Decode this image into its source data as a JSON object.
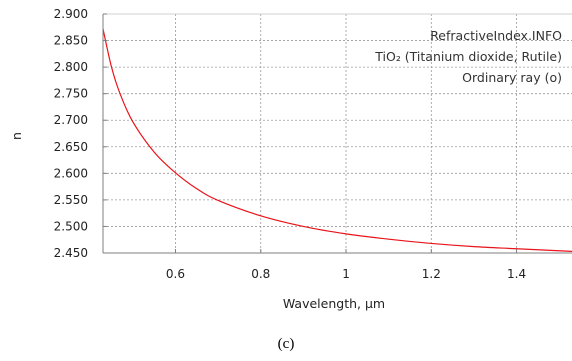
{
  "chart_data": {
    "type": "line",
    "title": "",
    "xlabel": "Wavelength, µm",
    "ylabel": "n",
    "xlim": [
      0.43,
      1.53
    ],
    "ylim": [
      2.45,
      2.9
    ],
    "x_ticks": [
      0.6,
      0.8,
      1.0,
      1.2,
      1.4
    ],
    "x_tick_labels": [
      "0.6",
      "0.8",
      "1",
      "1.2",
      "1.4"
    ],
    "y_ticks": [
      2.45,
      2.5,
      2.55,
      2.6,
      2.65,
      2.7,
      2.75,
      2.8,
      2.85,
      2.9
    ],
    "y_tick_labels": [
      "2.450",
      "2.500",
      "2.550",
      "2.600",
      "2.650",
      "2.700",
      "2.750",
      "2.800",
      "2.850",
      "2.900"
    ],
    "grid": true,
    "annotations": [
      "RefractiveIndex.INFO",
      "TiO₂ (Titanium dioxide, Rutile)",
      "Ordinary ray (o)"
    ],
    "series": [
      {
        "color": "#e8141a",
        "x": [
          0.43,
          0.45,
          0.47,
          0.5,
          0.55,
          0.6,
          0.65,
          0.7,
          0.8,
          0.9,
          1.0,
          1.1,
          1.2,
          1.3,
          1.4,
          1.53
        ],
        "y": [
          2.872,
          2.8,
          2.75,
          2.697,
          2.64,
          2.601,
          2.571,
          2.549,
          2.52,
          2.5,
          2.486,
          2.476,
          2.468,
          2.462,
          2.458,
          2.453
        ]
      }
    ]
  },
  "caption": "(c)"
}
